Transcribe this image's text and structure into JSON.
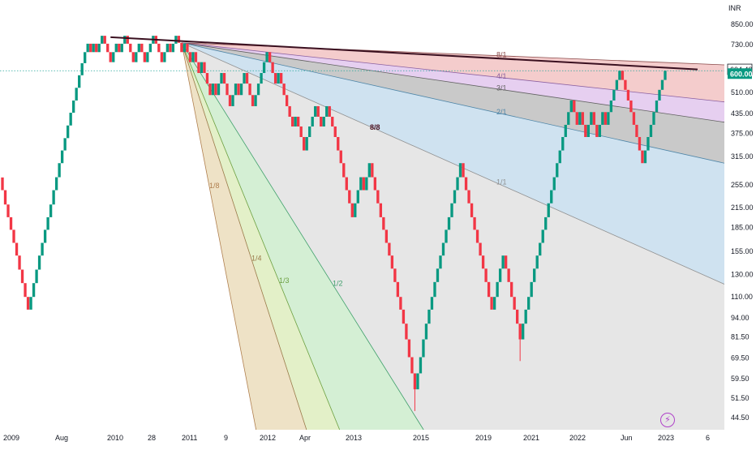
{
  "chart_data": {
    "type": "renko",
    "currency": "INR",
    "y_scale": "log",
    "ylim": [
      43,
      900
    ],
    "y_ticks": [
      "850.00",
      "730.00",
      "510.00",
      "435.00",
      "375.00",
      "315.00",
      "255.00",
      "215.00",
      "185.00",
      "155.00",
      "130.00",
      "110.00",
      "94.00",
      "81.50",
      "69.50",
      "59.50",
      "51.50",
      "44.50"
    ],
    "x_ticks": [
      "2009",
      "Aug",
      "2010",
      "28",
      "2011",
      "9",
      "2012",
      "Apr",
      "2013",
      "2015",
      "2019",
      "2021",
      "2022",
      "Jun",
      "2023",
      "6"
    ],
    "current_price": "600.00",
    "high_price": "604.40",
    "gann_fan": {
      "origin_brick": 63,
      "origin_price": 740,
      "ratios": [
        {
          "label": "8/1",
          "end_price": 627
        },
        {
          "label": "4/1",
          "end_price": 475
        },
        {
          "label": "3/1",
          "end_price": 408
        },
        {
          "label": "2/1",
          "end_price": 300
        },
        {
          "label": "1/1",
          "end_price": 121
        },
        {
          "label": "1/2",
          "end_price": 42
        },
        {
          "label": "1/3",
          "end_price": 42
        },
        {
          "label": "1/4",
          "end_price": 42
        },
        {
          "label": "1/8",
          "end_price": 42
        }
      ]
    },
    "annotation": "8/8",
    "renko_closes": [
      245,
      220,
      200,
      182,
      165,
      150,
      135,
      122,
      110,
      100,
      110,
      122,
      135,
      150,
      165,
      182,
      200,
      220,
      245,
      270,
      300,
      330,
      362,
      398,
      438,
      480,
      528,
      580,
      635,
      690,
      735,
      690,
      735,
      690,
      735,
      780,
      735,
      690,
      640,
      690,
      735,
      690,
      735,
      780,
      735,
      690,
      640,
      690,
      735,
      690,
      640,
      690,
      735,
      780,
      735,
      690,
      640,
      690,
      735,
      690,
      735,
      780,
      740,
      690,
      735,
      690,
      640,
      690,
      640,
      590,
      640,
      590,
      545,
      500,
      545,
      500,
      545,
      590,
      545,
      500,
      460,
      500,
      545,
      500,
      545,
      590,
      545,
      500,
      460,
      500,
      545,
      590,
      640,
      690,
      640,
      590,
      545,
      590,
      545,
      500,
      460,
      425,
      395,
      425,
      395,
      365,
      330,
      365,
      395,
      425,
      460,
      425,
      395,
      425,
      460,
      425,
      395,
      365,
      330,
      300,
      270,
      245,
      222,
      200,
      222,
      245,
      270,
      245,
      270,
      300,
      270,
      245,
      222,
      200,
      182,
      165,
      150,
      136,
      123,
      110,
      100,
      90,
      80,
      70,
      62,
      55,
      62,
      70,
      80,
      90,
      100,
      110,
      123,
      136,
      150,
      165,
      182,
      200,
      222,
      245,
      270,
      300,
      270,
      245,
      222,
      200,
      182,
      165,
      150,
      136,
      123,
      110,
      100,
      110,
      123,
      136,
      150,
      136,
      123,
      110,
      100,
      90,
      80,
      90,
      100,
      110,
      123,
      136,
      150,
      165,
      182,
      200,
      222,
      245,
      270,
      300,
      330,
      365,
      400,
      440,
      480,
      440,
      400,
      440,
      400,
      365,
      400,
      440,
      400,
      365,
      400,
      440,
      400,
      440,
      480,
      520,
      560,
      600,
      560,
      520,
      480,
      440,
      400,
      365,
      330,
      300,
      330,
      365,
      400,
      440,
      480,
      520,
      560,
      600
    ]
  }
}
